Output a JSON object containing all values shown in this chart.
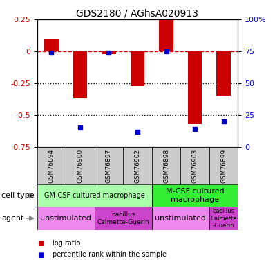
{
  "title": "GDS2180 / AGhsA020913",
  "samples": [
    "GSM76894",
    "GSM76900",
    "GSM76897",
    "GSM76902",
    "GSM76898",
    "GSM76903",
    "GSM76899"
  ],
  "log_ratios": [
    0.1,
    -0.37,
    -0.02,
    -0.27,
    0.27,
    -0.57,
    -0.35
  ],
  "percentile_ranks": [
    74,
    15,
    74,
    12,
    75,
    14,
    20
  ],
  "ylim_left": [
    -0.75,
    0.25
  ],
  "ylim_right": [
    0,
    100
  ],
  "left_yticks": [
    0.25,
    0.0,
    -0.25,
    -0.5,
    -0.75
  ],
  "left_ytick_labels": [
    "0.25",
    "0",
    "-0.25",
    "-0.5",
    "-0.75"
  ],
  "right_yticks": [
    100,
    75,
    50,
    25,
    0
  ],
  "right_ytick_labels": [
    "100%",
    "75",
    "50",
    "25",
    "0"
  ],
  "bar_color": "#cc0000",
  "dot_color": "#0000cc",
  "dashed_line_color": "#cc0000",
  "dotted_line_color": "#000000",
  "cell_type_row": [
    {
      "label": "GM-CSF cultured macrophage",
      "start": 0,
      "end": 4,
      "color": "#aaffaa",
      "fontsize": 7
    },
    {
      "label": "M-CSF cultured\nmacrophage",
      "start": 4,
      "end": 7,
      "color": "#33ee33",
      "fontsize": 8
    }
  ],
  "agent_row": [
    {
      "label": "unstimulated",
      "start": 0,
      "end": 2,
      "color": "#ee88ee",
      "fontsize": 8
    },
    {
      "label": "bacillus\nCalmette-Guerin",
      "start": 2,
      "end": 4,
      "color": "#cc44cc",
      "fontsize": 6.5
    },
    {
      "label": "unstimulated",
      "start": 4,
      "end": 6,
      "color": "#ee88ee",
      "fontsize": 8
    },
    {
      "label": "bacillus\nCalmette\n-Guerin",
      "start": 6,
      "end": 7,
      "color": "#cc44cc",
      "fontsize": 6
    }
  ],
  "legend_items": [
    {
      "color": "#cc0000",
      "label": "log ratio"
    },
    {
      "color": "#0000cc",
      "label": "percentile rank within the sample"
    }
  ],
  "bar_width": 0.5,
  "dot_size": 5
}
